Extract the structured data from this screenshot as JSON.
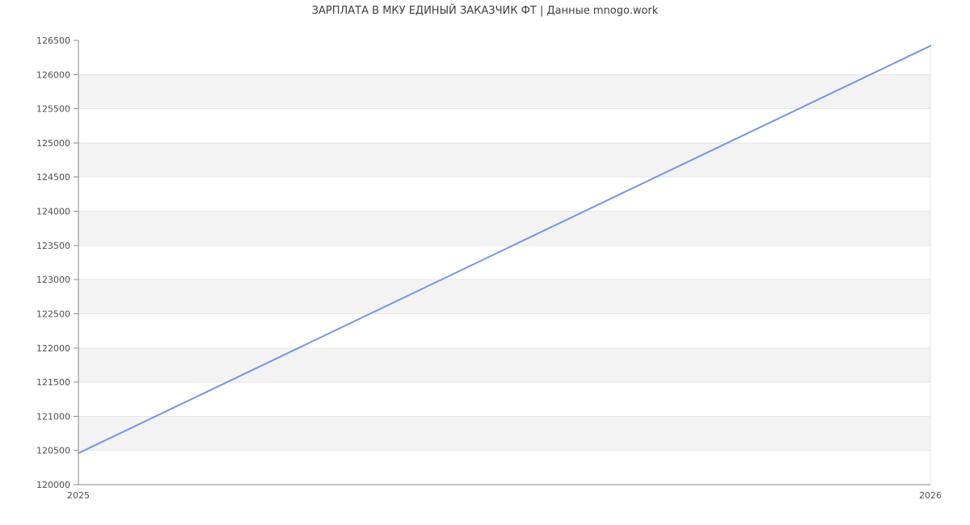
{
  "colors": {
    "background": "#ffffff",
    "line": "#7496e6",
    "band": "#f3f3f3",
    "grid": "#e6e6e6",
    "axis": "#8a8a8a",
    "tick_label": "#4f4f4f",
    "title": "#3f3f3f"
  },
  "chart_data": {
    "type": "line",
    "title": "ЗАРПЛАТА В МКУ ЕДИНЫЙ ЗАКАЗЧИК ФТ | Данные mnogo.work",
    "xlabel": "",
    "ylabel": "",
    "x": [
      2025,
      2026
    ],
    "series": [
      {
        "name": "salary",
        "values": [
          120460,
          126420
        ]
      }
    ],
    "ylim": [
      120000,
      126500
    ],
    "ytick_step": 500,
    "ytick_labels": [
      "120000",
      "120500",
      "121000",
      "121500",
      "122000",
      "122500",
      "123000",
      "123500",
      "124000",
      "124500",
      "125000",
      "125500",
      "126000",
      "126500"
    ],
    "xtick_labels": [
      "2025",
      "2026"
    ],
    "grid": true,
    "alternating_bands": true,
    "legend": "none"
  }
}
